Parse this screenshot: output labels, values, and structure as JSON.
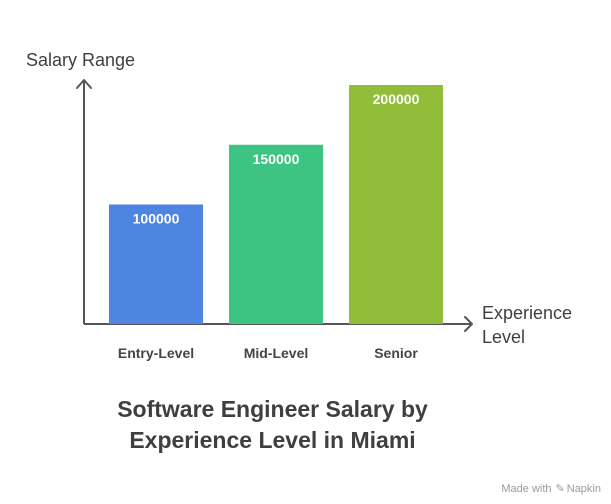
{
  "chart_data": {
    "type": "bar",
    "title": [
      "Software Engineer Salary by",
      "Experience Level in Miami"
    ],
    "ylabel": "Salary Range",
    "xlabel": [
      "Experience",
      "Level"
    ],
    "categories": [
      "Entry-Level",
      "Mid-Level",
      "Senior"
    ],
    "values": [
      100000,
      150000,
      200000
    ],
    "colors": [
      "#4e85e3",
      "#3ec482",
      "#92bd3b"
    ],
    "ylim": [
      0,
      200000
    ],
    "grid": false,
    "legend": "none"
  },
  "footer": {
    "made_with": "Made with",
    "brand": "Napkin",
    "brand_icon": "napkin-logo-icon"
  }
}
